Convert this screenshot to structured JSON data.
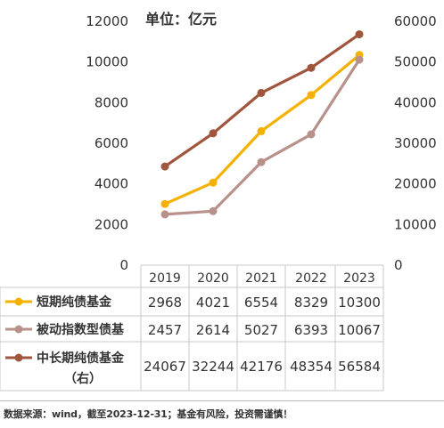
{
  "chart_data": {
    "type": "line",
    "title": "单位：亿元",
    "categories": [
      "2019",
      "2020",
      "2021",
      "2022",
      "2023"
    ],
    "y_left": {
      "min": 0,
      "max": 12000,
      "step": 2000,
      "ticks": [
        "0",
        "2000",
        "4000",
        "6000",
        "8000",
        "10000",
        "12000"
      ]
    },
    "y_right": {
      "min": 0,
      "max": 60000,
      "step": 10000,
      "ticks": [
        "0",
        "10000",
        "20000",
        "30000",
        "40000",
        "50000",
        "60000"
      ]
    },
    "grid": false,
    "legend": "table-below",
    "series": [
      {
        "name": "短期纯债基金",
        "axis": "left",
        "color": "#F5B100",
        "values": [
          2968,
          4021,
          6554,
          8329,
          10300
        ],
        "labels": [
          "2968",
          "4021",
          "6554",
          "8329",
          "10300"
        ]
      },
      {
        "name": "被动指数型债基",
        "axis": "left",
        "color": "#B8918A",
        "values": [
          2457,
          2614,
          5027,
          6393,
          10067
        ],
        "labels": [
          "2457",
          "2614",
          "5027",
          "6393",
          "10067"
        ]
      },
      {
        "name": "中长期纯债基金",
        "name_line2": "（右）",
        "axis": "right",
        "color": "#A0553D",
        "values": [
          24067,
          32244,
          42176,
          48354,
          56584
        ],
        "labels": [
          "24067",
          "32244",
          "42176",
          "48354",
          "56584"
        ]
      }
    ]
  },
  "footer": {
    "source": "数据来源：wind，截至2023-12-31；基金有风险，投资需谨慎！"
  }
}
